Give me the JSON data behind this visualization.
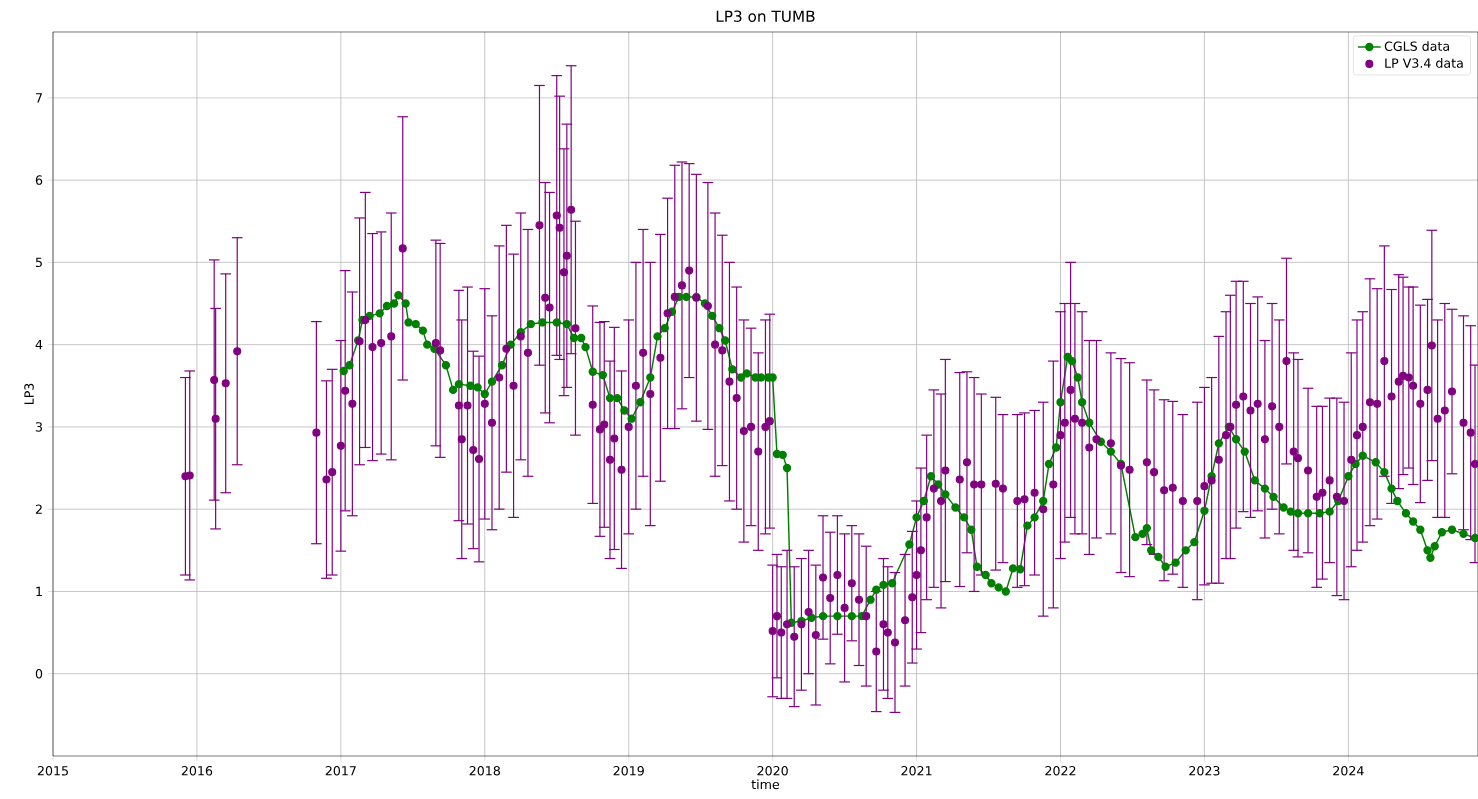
{
  "chart_data": {
    "type": "line",
    "title": "LP3 on TUMB",
    "xlabel": "time",
    "ylabel": "LP3",
    "xlim": [
      2015,
      2024.9
    ],
    "ylim": [
      -1,
      7.8
    ],
    "xticks": [
      2015,
      2016,
      2017,
      2018,
      2019,
      2020,
      2021,
      2022,
      2023,
      2024
    ],
    "yticks": [
      0,
      1,
      2,
      3,
      4,
      5,
      6,
      7
    ],
    "grid": true,
    "legend": "top right",
    "marker": "circle",
    "series": [
      {
        "name": "CGLS data",
        "type": "line",
        "color": "#008000",
        "x": [
          2017.02,
          2017.06,
          2017.12,
          2017.15,
          2017.2,
          2017.27,
          2017.32,
          2017.37,
          2017.4,
          2017.45,
          2017.47,
          2017.52,
          2017.57,
          2017.6,
          2017.65,
          2017.73,
          2017.78,
          2017.82,
          2017.9,
          2017.95,
          2018.0,
          2018.05,
          2018.12,
          2018.18,
          2018.25,
          2018.32,
          2018.4,
          2018.5,
          2018.57,
          2018.62,
          2018.67,
          2018.7,
          2018.75,
          2018.82,
          2018.87,
          2018.92,
          2018.97,
          2019.02,
          2019.08,
          2019.15,
          2019.2,
          2019.25,
          2019.3,
          2019.35,
          2019.4,
          2019.47,
          2019.53,
          2019.58,
          2019.63,
          2019.67,
          2019.72,
          2019.78,
          2019.82,
          2019.88,
          2019.92,
          2019.97,
          2020.0,
          2020.03,
          2020.07,
          2020.1,
          2020.13,
          2020.2,
          2020.27,
          2020.35,
          2020.45,
          2020.55,
          2020.62,
          2020.68,
          2020.72,
          2020.77,
          2020.83,
          2020.95,
          2021.0,
          2021.05,
          2021.1,
          2021.15,
          2021.2,
          2021.27,
          2021.33,
          2021.38,
          2021.42,
          2021.48,
          2021.52,
          2021.57,
          2021.62,
          2021.67,
          2021.72,
          2021.77,
          2021.82,
          2021.88,
          2021.92,
          2021.97,
          2022.0,
          2022.05,
          2022.08,
          2022.12,
          2022.15,
          2022.2,
          2022.28,
          2022.35,
          2022.42,
          2022.52,
          2022.57,
          2022.6,
          2022.63,
          2022.68,
          2022.73,
          2022.8,
          2022.87,
          2022.93,
          2023.0,
          2023.05,
          2023.1,
          2023.17,
          2023.22,
          2023.28,
          2023.35,
          2023.42,
          2023.48,
          2023.55,
          2023.6,
          2023.65,
          2023.72,
          2023.8,
          2023.87,
          2023.93,
          2024.0,
          2024.05,
          2024.1,
          2024.19,
          2024.25,
          2024.3,
          2024.34,
          2024.4,
          2024.45,
          2024.5,
          2024.55,
          2024.57,
          2024.6,
          2024.65,
          2024.72,
          2024.8,
          2024.88
        ],
        "values": [
          3.68,
          3.75,
          4.05,
          4.3,
          4.35,
          4.38,
          4.47,
          4.5,
          4.6,
          4.5,
          4.27,
          4.25,
          4.17,
          4.0,
          3.95,
          3.75,
          3.45,
          3.52,
          3.5,
          3.48,
          3.4,
          3.55,
          3.75,
          4.0,
          4.15,
          4.25,
          4.27,
          4.27,
          4.25,
          4.08,
          4.08,
          3.97,
          3.67,
          3.63,
          3.35,
          3.35,
          3.2,
          3.1,
          3.3,
          3.6,
          4.1,
          4.2,
          4.4,
          4.58,
          4.58,
          4.58,
          4.5,
          4.35,
          4.2,
          4.05,
          3.7,
          3.6,
          3.65,
          3.6,
          3.6,
          3.6,
          3.6,
          2.67,
          2.66,
          2.5,
          0.62,
          0.64,
          0.68,
          0.7,
          0.7,
          0.7,
          0.7,
          0.9,
          1.02,
          1.08,
          1.1,
          1.57,
          1.9,
          2.1,
          2.4,
          2.3,
          2.18,
          2.02,
          1.9,
          1.75,
          1.3,
          1.2,
          1.1,
          1.05,
          1.0,
          1.28,
          1.27,
          1.8,
          1.9,
          2.1,
          2.55,
          2.75,
          3.3,
          3.85,
          3.8,
          3.6,
          3.3,
          3.05,
          2.82,
          2.7,
          2.55,
          1.66,
          1.7,
          1.77,
          1.5,
          1.42,
          1.3,
          1.35,
          1.5,
          1.6,
          1.98,
          2.4,
          2.8,
          3.0,
          2.85,
          2.7,
          2.35,
          2.25,
          2.15,
          2.02,
          1.97,
          1.95,
          1.95,
          1.95,
          1.97,
          2.1,
          2.4,
          2.55,
          2.65,
          2.57,
          2.45,
          2.25,
          2.1,
          1.95,
          1.85,
          1.75,
          1.5,
          1.41,
          1.55,
          1.72,
          1.75,
          1.7,
          1.65
        ]
      },
      {
        "name": "LP V3.4 data",
        "type": "scatter",
        "color": "#800080",
        "x": [
          2015.92,
          2015.95,
          2016.12,
          2016.13,
          2016.2,
          2016.28,
          2016.83,
          2016.9,
          2016.94,
          2017.0,
          2017.03,
          2017.08,
          2017.13,
          2017.17,
          2017.22,
          2017.28,
          2017.35,
          2017.43,
          2017.66,
          2017.69,
          2017.82,
          2017.84,
          2017.88,
          2017.92,
          2017.96,
          2018.0,
          2018.05,
          2018.1,
          2018.15,
          2018.2,
          2018.25,
          2018.3,
          2018.38,
          2018.42,
          2018.45,
          2018.5,
          2018.52,
          2018.55,
          2018.57,
          2018.6,
          2018.63,
          2018.75,
          2018.8,
          2018.83,
          2018.87,
          2018.9,
          2018.95,
          2019.0,
          2019.05,
          2019.1,
          2019.15,
          2019.22,
          2019.27,
          2019.32,
          2019.37,
          2019.42,
          2019.47,
          2019.55,
          2019.6,
          2019.65,
          2019.7,
          2019.75,
          2019.8,
          2019.85,
          2019.9,
          2019.95,
          2019.98,
          2020.0,
          2020.03,
          2020.06,
          2020.1,
          2020.15,
          2020.2,
          2020.25,
          2020.3,
          2020.35,
          2020.4,
          2020.45,
          2020.5,
          2020.55,
          2020.6,
          2020.65,
          2020.72,
          2020.77,
          2020.8,
          2020.85,
          2020.92,
          2020.97,
          2021.0,
          2021.03,
          2021.07,
          2021.12,
          2021.17,
          2021.2,
          2021.3,
          2021.35,
          2021.4,
          2021.45,
          2021.55,
          2021.6,
          2021.7,
          2021.75,
          2021.82,
          2021.88,
          2021.95,
          2022.0,
          2022.03,
          2022.07,
          2022.1,
          2022.15,
          2022.2,
          2022.25,
          2022.35,
          2022.42,
          2022.48,
          2022.6,
          2022.65,
          2022.72,
          2022.78,
          2022.85,
          2022.95,
          2023.0,
          2023.05,
          2023.1,
          2023.15,
          2023.18,
          2023.22,
          2023.27,
          2023.32,
          2023.37,
          2023.42,
          2023.47,
          2023.52,
          2023.57,
          2023.62,
          2023.65,
          2023.72,
          2023.78,
          2023.82,
          2023.87,
          2023.92,
          2023.97,
          2024.02,
          2024.06,
          2024.1,
          2024.15,
          2024.2,
          2024.25,
          2024.3,
          2024.35,
          2024.38,
          2024.42,
          2024.45,
          2024.5,
          2024.55,
          2024.58,
          2024.62,
          2024.67,
          2024.72,
          2024.8,
          2024.85,
          2024.88
        ],
        "values": [
          2.4,
          2.41,
          3.57,
          3.1,
          3.53,
          3.92,
          2.93,
          2.36,
          2.45,
          2.77,
          3.44,
          3.28,
          4.04,
          4.3,
          3.97,
          4.02,
          4.1,
          5.17,
          4.02,
          3.93,
          3.26,
          2.85,
          3.26,
          2.72,
          2.61,
          3.28,
          3.05,
          3.6,
          3.95,
          3.5,
          4.1,
          3.9,
          5.45,
          4.57,
          4.45,
          5.57,
          5.42,
          4.88,
          5.08,
          5.64,
          4.2,
          3.27,
          2.97,
          3.03,
          2.6,
          2.86,
          2.48,
          3.0,
          3.5,
          3.9,
          3.4,
          3.84,
          4.38,
          4.58,
          4.72,
          4.9,
          4.57,
          4.47,
          4.0,
          3.93,
          3.55,
          3.35,
          2.95,
          3.0,
          2.7,
          3.0,
          3.07,
          0.52,
          0.7,
          0.5,
          0.6,
          0.45,
          0.6,
          0.75,
          0.47,
          1.17,
          0.92,
          1.2,
          0.8,
          1.1,
          0.9,
          0.7,
          0.27,
          0.6,
          0.5,
          0.38,
          0.65,
          0.93,
          1.2,
          1.5,
          1.9,
          2.25,
          2.1,
          2.47,
          2.36,
          2.57,
          2.3,
          2.3,
          2.31,
          2.25,
          2.1,
          2.12,
          2.2,
          2.0,
          2.3,
          2.9,
          3.05,
          3.45,
          3.1,
          3.05,
          2.75,
          2.85,
          2.8,
          2.53,
          2.48,
          2.57,
          2.45,
          2.23,
          2.26,
          2.1,
          2.1,
          2.28,
          2.35,
          2.6,
          2.9,
          3.0,
          3.27,
          3.37,
          3.2,
          3.28,
          2.85,
          3.25,
          3.0,
          3.8,
          2.7,
          2.62,
          2.47,
          2.15,
          2.2,
          2.35,
          2.15,
          2.1,
          2.6,
          2.9,
          3.0,
          3.3,
          3.28,
          3.8,
          3.37,
          3.55,
          3.62,
          3.6,
          3.5,
          3.28,
          3.45,
          3.99,
          3.1,
          3.2,
          3.43,
          3.05,
          2.93,
          2.55
        ],
        "errors": [
          1.2,
          1.27,
          1.46,
          1.34,
          1.33,
          1.38,
          1.35,
          1.2,
          1.25,
          1.28,
          1.46,
          1.36,
          1.5,
          1.55,
          1.38,
          1.35,
          1.5,
          1.6,
          1.25,
          1.3,
          1.4,
          1.45,
          1.44,
          1.2,
          1.25,
          1.4,
          1.3,
          1.6,
          1.5,
          1.6,
          1.5,
          1.5,
          1.7,
          1.4,
          1.4,
          1.7,
          1.6,
          1.5,
          1.6,
          1.75,
          1.3,
          1.2,
          1.3,
          1.25,
          1.2,
          1.35,
          1.2,
          1.3,
          1.5,
          1.5,
          1.6,
          1.5,
          1.4,
          1.6,
          1.5,
          1.3,
          1.5,
          1.5,
          1.6,
          1.4,
          1.45,
          1.35,
          1.35,
          1.2,
          1.2,
          1.3,
          1.3,
          0.8,
          0.75,
          0.8,
          0.9,
          0.85,
          0.8,
          0.75,
          0.85,
          0.75,
          0.8,
          0.72,
          0.9,
          0.7,
          0.8,
          0.85,
          0.73,
          0.8,
          0.8,
          0.85,
          0.8,
          0.8,
          0.9,
          1.0,
          1.0,
          1.2,
          1.3,
          1.35,
          1.3,
          1.1,
          1.3,
          1.1,
          1.05,
          0.9,
          1.05,
          1.05,
          1.0,
          1.3,
          1.5,
          1.5,
          1.45,
          1.55,
          1.4,
          1.35,
          1.3,
          1.2,
          1.1,
          1.3,
          1.3,
          1.0,
          1.0,
          1.1,
          1.05,
          1.05,
          1.2,
          1.2,
          1.25,
          1.5,
          1.5,
          1.6,
          1.5,
          1.4,
          1.3,
          1.3,
          1.2,
          1.25,
          1.3,
          1.25,
          1.2,
          1.2,
          1.0,
          1.1,
          1.05,
          1.0,
          1.2,
          1.2,
          1.3,
          1.4,
          1.4,
          1.5,
          1.4,
          1.4,
          1.3,
          1.3,
          1.2,
          1.1,
          1.2,
          1.2,
          1.1,
          1.4,
          1.2,
          1.3,
          1.0,
          1.3,
          1.3,
          1.2
        ]
      }
    ]
  }
}
